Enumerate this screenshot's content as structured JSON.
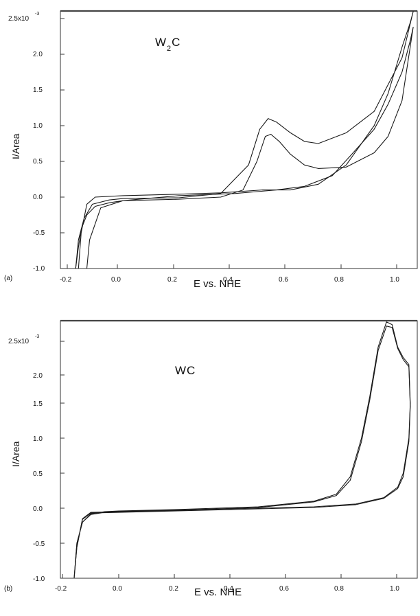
{
  "chart_data": [
    {
      "type": "line",
      "panel_label": "(a)",
      "title_main": "W",
      "title_sub": "2",
      "title_tail": "C",
      "xlabel": "E vs. NHE",
      "ylabel": "I/Area",
      "xlim": [
        -0.2,
        1.08
      ],
      "ylim": [
        -1.0,
        2.62
      ],
      "xticks": [
        -0.2,
        0.0,
        0.2,
        0.4,
        0.6,
        0.8,
        1.0
      ],
      "xtick_labels": [
        "-0.2",
        "0.0",
        "0.2",
        "0.4",
        "0.6",
        "0.8",
        "1.0"
      ],
      "yticks": [
        -1.0,
        -0.5,
        0.0,
        0.5,
        1.0,
        1.5,
        2.0,
        2.5
      ],
      "ytick_labels": [
        "-1.0",
        "-0.5",
        "0.0",
        "0.5",
        "1.0",
        "1.5",
        "2.0",
        "2.5x10"
      ],
      "ytick_exponent": "-3",
      "series": [
        {
          "values": [
            [
              -0.17,
              -1.0
            ],
            [
              -0.16,
              -0.7
            ],
            [
              -0.15,
              -0.45
            ],
            [
              -0.13,
              -0.25
            ],
            [
              -0.1,
              -0.13
            ],
            [
              -0.05,
              -0.08
            ],
            [
              0.0,
              -0.05
            ],
            [
              0.2,
              -0.03
            ],
            [
              0.35,
              0.0
            ],
            [
              0.43,
              0.1
            ],
            [
              0.48,
              0.5
            ],
            [
              0.51,
              0.85
            ],
            [
              0.53,
              0.88
            ],
            [
              0.56,
              0.78
            ],
            [
              0.6,
              0.6
            ],
            [
              0.65,
              0.45
            ],
            [
              0.7,
              0.4
            ],
            [
              0.8,
              0.42
            ],
            [
              0.9,
              0.62
            ],
            [
              0.95,
              0.85
            ],
            [
              1.0,
              1.35
            ],
            [
              1.04,
              2.38
            ],
            [
              1.03,
              2.2
            ],
            [
              1.0,
              1.75
            ],
            [
              0.95,
              1.3
            ],
            [
              0.9,
              0.95
            ],
            [
              0.82,
              0.6
            ],
            [
              0.75,
              0.3
            ],
            [
              0.65,
              0.15
            ],
            [
              0.55,
              0.1
            ],
            [
              0.4,
              0.05
            ],
            [
              0.2,
              0.02
            ],
            [
              0.0,
              -0.05
            ],
            [
              -0.08,
              -0.15
            ],
            [
              -0.12,
              -0.6
            ],
            [
              -0.13,
              -1.0
            ]
          ]
        },
        {
          "values": [
            [
              -0.17,
              -1.0
            ],
            [
              -0.16,
              -0.6
            ],
            [
              -0.14,
              -0.3
            ],
            [
              -0.11,
              -0.1
            ],
            [
              -0.05,
              -0.04
            ],
            [
              0.0,
              -0.02
            ],
            [
              0.2,
              -0.01
            ],
            [
              0.35,
              0.05
            ],
            [
              0.45,
              0.45
            ],
            [
              0.49,
              0.95
            ],
            [
              0.52,
              1.1
            ],
            [
              0.55,
              1.05
            ],
            [
              0.6,
              0.9
            ],
            [
              0.65,
              0.78
            ],
            [
              0.7,
              0.75
            ],
            [
              0.8,
              0.9
            ],
            [
              0.9,
              1.2
            ],
            [
              1.0,
              1.95
            ],
            [
              1.04,
              2.6
            ],
            [
              1.03,
              2.45
            ],
            [
              1.0,
              2.1
            ],
            [
              0.95,
              1.45
            ],
            [
              0.9,
              1.0
            ],
            [
              0.8,
              0.45
            ],
            [
              0.7,
              0.18
            ],
            [
              0.6,
              0.1
            ],
            [
              0.5,
              0.1
            ],
            [
              0.35,
              0.06
            ],
            [
              0.2,
              0.04
            ],
            [
              0.0,
              0.02
            ],
            [
              -0.1,
              0.0
            ],
            [
              -0.13,
              -0.1
            ],
            [
              -0.15,
              -0.5
            ],
            [
              -0.16,
              -1.0
            ]
          ]
        }
      ]
    },
    {
      "type": "line",
      "panel_label": "(b)",
      "title_main": "WC",
      "xlabel": "E vs. NHE",
      "ylabel": "I/Area",
      "xlim": [
        -0.22,
        1.08
      ],
      "ylim": [
        -1.0,
        2.8
      ],
      "xticks": [
        -0.2,
        0.0,
        0.2,
        0.4,
        0.6,
        0.8,
        1.0
      ],
      "xtick_labels": [
        "-0.2",
        "0.0",
        "0.2",
        "0.4",
        "0.6",
        "0.8",
        "1.0"
      ],
      "yticks": [
        -1.0,
        -0.5,
        0.0,
        0.5,
        1.0,
        1.5,
        2.0,
        2.5
      ],
      "ytick_labels": [
        "-1.0",
        "-0.5",
        "0.0",
        "0.5",
        "1.0",
        "1.5",
        "2.0",
        "2.5x10"
      ],
      "ytick_exponent": "-3",
      "series": [
        {
          "values": [
            [
              -0.16,
              -1.0
            ],
            [
              -0.15,
              -0.5
            ],
            [
              -0.13,
              -0.2
            ],
            [
              -0.1,
              -0.08
            ],
            [
              -0.05,
              -0.05
            ],
            [
              0.0,
              -0.04
            ],
            [
              0.2,
              -0.02
            ],
            [
              0.5,
              0.02
            ],
            [
              0.7,
              0.1
            ],
            [
              0.78,
              0.2
            ],
            [
              0.83,
              0.45
            ],
            [
              0.87,
              1.0
            ],
            [
              0.9,
              1.6
            ],
            [
              0.93,
              2.3
            ],
            [
              0.96,
              2.66
            ],
            [
              0.98,
              2.62
            ],
            [
              1.0,
              2.3
            ],
            [
              1.02,
              2.15
            ],
            [
              1.04,
              2.05
            ],
            [
              1.045,
              1.5
            ],
            [
              1.04,
              1.0
            ],
            [
              1.02,
              0.5
            ],
            [
              1.0,
              0.3
            ],
            [
              0.95,
              0.15
            ],
            [
              0.85,
              0.06
            ],
            [
              0.7,
              0.02
            ],
            [
              0.5,
              0.0
            ],
            [
              0.2,
              -0.03
            ],
            [
              0.0,
              -0.05
            ],
            [
              -0.1,
              -0.06
            ],
            [
              -0.13,
              -0.15
            ],
            [
              -0.15,
              -0.55
            ],
            [
              -0.16,
              -1.0
            ]
          ]
        },
        {
          "values": [
            [
              -0.16,
              -1.0
            ],
            [
              -0.15,
              -0.5
            ],
            [
              -0.13,
              -0.2
            ],
            [
              -0.1,
              -0.09
            ],
            [
              -0.05,
              -0.06
            ],
            [
              0.0,
              -0.05
            ],
            [
              0.2,
              -0.03
            ],
            [
              0.5,
              0.01
            ],
            [
              0.7,
              0.09
            ],
            [
              0.78,
              0.18
            ],
            [
              0.83,
              0.4
            ],
            [
              0.87,
              0.95
            ],
            [
              0.9,
              1.55
            ],
            [
              0.93,
              2.25
            ],
            [
              0.96,
              2.6
            ],
            [
              0.98,
              2.58
            ],
            [
              1.0,
              2.28
            ],
            [
              1.02,
              2.12
            ],
            [
              1.04,
              2.02
            ],
            [
              1.045,
              1.45
            ],
            [
              1.04,
              0.95
            ],
            [
              1.02,
              0.45
            ],
            [
              1.0,
              0.28
            ],
            [
              0.95,
              0.14
            ],
            [
              0.85,
              0.05
            ],
            [
              0.7,
              0.01
            ],
            [
              0.5,
              -0.01
            ],
            [
              0.2,
              -0.04
            ],
            [
              0.0,
              -0.06
            ],
            [
              -0.1,
              -0.07
            ],
            [
              -0.13,
              -0.16
            ],
            [
              -0.15,
              -0.56
            ],
            [
              -0.16,
              -1.0
            ]
          ]
        }
      ]
    }
  ]
}
